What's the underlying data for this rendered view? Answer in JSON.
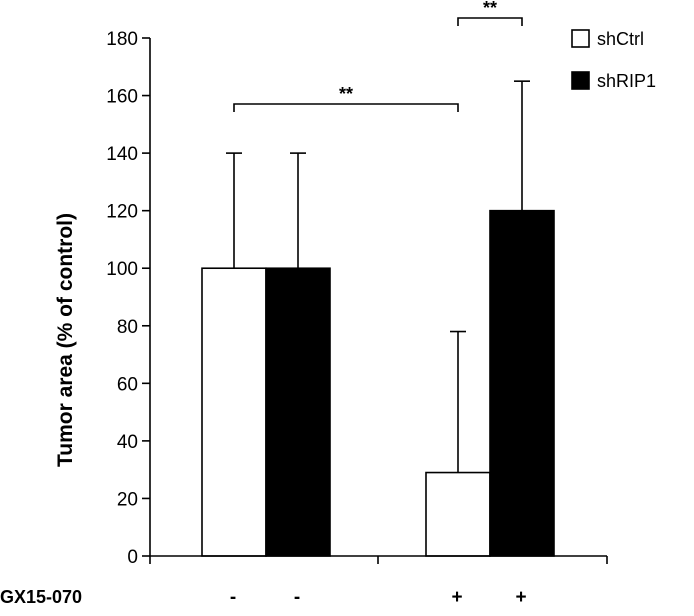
{
  "chart_data": {
    "type": "bar",
    "title": "",
    "xlabel": "",
    "ylabel": "Tumor area (% of control)",
    "ylim": [
      0,
      180
    ],
    "yticks": [
      0,
      20,
      40,
      60,
      80,
      100,
      120,
      140,
      160,
      180
    ],
    "grid": false,
    "legend_position": "top-right",
    "series": [
      {
        "name": "shCtrl",
        "color": "#ffffff",
        "values": [
          100,
          29
        ],
        "errors": [
          40,
          49
        ]
      },
      {
        "name": "shRIP1",
        "color": "#000000",
        "values": [
          100,
          120
        ],
        "errors": [
          40,
          45
        ]
      }
    ],
    "groups": [
      {
        "treatment": [
          "-",
          "-"
        ]
      },
      {
        "treatment": [
          "+",
          "+"
        ]
      }
    ],
    "treatment_label": "GX15-070",
    "significance": [
      {
        "label": "**",
        "from": [
          0,
          0
        ],
        "to": [
          1,
          0
        ]
      },
      {
        "label": "**",
        "from": [
          1,
          0
        ],
        "to": [
          1,
          1
        ]
      }
    ]
  }
}
